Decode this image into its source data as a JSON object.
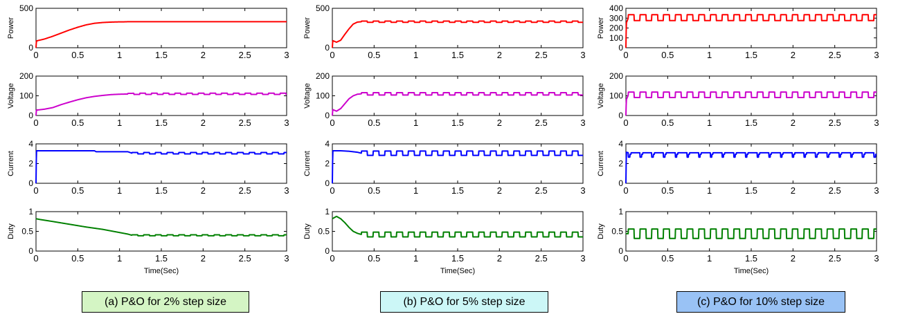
{
  "chart_data": [
    {
      "type": "line",
      "caption": "(a) P&O for 2% step size",
      "caption_color": "#d4f5c4",
      "xlabel": "Time(Sec)",
      "xlim": [
        0,
        3
      ],
      "xticks": [
        "0",
        "0.5",
        "1",
        "1.5",
        "2",
        "2.5",
        "3"
      ],
      "subplots": [
        {
          "ylabel": "Power",
          "ylim": [
            0,
            500
          ],
          "yticks": [
            "0",
            "500"
          ],
          "color": "#ff0000",
          "x": [
            0,
            0.005,
            0.02,
            0.1,
            0.2,
            0.3,
            0.4,
            0.5,
            0.6,
            0.7,
            0.8,
            0.9,
            1.0,
            1.05,
            1.1,
            1.5,
            2.0,
            2.5,
            3.0
          ],
          "y": [
            0,
            85,
            90,
            110,
            145,
            185,
            225,
            260,
            290,
            310,
            320,
            325,
            328,
            328,
            330,
            330,
            330,
            330,
            330
          ]
        },
        {
          "ylabel": "Voltage",
          "ylim": [
            0,
            200
          ],
          "yticks": [
            "0",
            "100",
            "200"
          ],
          "color": "#cc00cc",
          "x": [
            0,
            0.005,
            0.02,
            0.1,
            0.2,
            0.3,
            0.4,
            0.5,
            0.6,
            0.7,
            0.8,
            0.9,
            1.0,
            1.2,
            1.5,
            2.0,
            2.5,
            3.0
          ],
          "y": [
            0,
            28,
            28,
            32,
            40,
            55,
            68,
            80,
            90,
            97,
            102,
            106,
            108,
            110,
            110,
            110,
            110,
            110
          ],
          "ripple": {
            "from": 1.1,
            "amp": 3,
            "period": 0.14
          }
        },
        {
          "ylabel": "Current",
          "ylim": [
            0,
            4
          ],
          "yticks": [
            "0",
            "2",
            "4"
          ],
          "color": "#0000ff",
          "x": [
            0,
            0.005,
            0.7,
            0.72,
            1.1,
            1.15,
            3.0
          ],
          "y": [
            0,
            3.3,
            3.3,
            3.2,
            3.2,
            3.05,
            3.05
          ],
          "ripple": {
            "from": 1.15,
            "amp": 0.07,
            "period": 0.14
          }
        },
        {
          "ylabel": "Duty",
          "ylim": [
            0,
            1
          ],
          "yticks": [
            "0",
            "0.5",
            "1"
          ],
          "color": "#008000",
          "x": [
            0,
            0.05,
            0.2,
            0.4,
            0.6,
            0.8,
            1.0,
            1.1,
            1.15,
            1.5,
            2.0,
            2.5,
            3.0
          ],
          "y": [
            0.82,
            0.8,
            0.75,
            0.68,
            0.61,
            0.55,
            0.47,
            0.43,
            0.4,
            0.4,
            0.4,
            0.4,
            0.4
          ],
          "ripple": {
            "from": 1.15,
            "amp": 0.012,
            "period": 0.14
          }
        }
      ]
    },
    {
      "type": "line",
      "caption": "(b) P&O for 5% step size",
      "caption_color": "#ccf7f7",
      "xlabel": "Time(Sec)",
      "xlim": [
        0,
        3
      ],
      "xticks": [
        "0",
        "0.5",
        "1",
        "1.5",
        "2",
        "2.5",
        "3"
      ],
      "subplots": [
        {
          "ylabel": "Power",
          "ylim": [
            0,
            500
          ],
          "yticks": [
            "0",
            "500"
          ],
          "color": "#ff0000",
          "x": [
            0,
            0.005,
            0.05,
            0.1,
            0.15,
            0.2,
            0.25,
            0.3,
            0.35,
            1.0,
            2.0,
            3.0
          ],
          "y": [
            0,
            90,
            70,
            95,
            170,
            240,
            300,
            325,
            330,
            330,
            330,
            330
          ],
          "ripple": {
            "from": 0.35,
            "amp": 8,
            "period": 0.14
          }
        },
        {
          "ylabel": "Voltage",
          "ylim": [
            0,
            200
          ],
          "yticks": [
            "0",
            "100",
            "200"
          ],
          "color": "#cc00cc",
          "x": [
            0,
            0.005,
            0.05,
            0.1,
            0.15,
            0.2,
            0.25,
            0.3,
            0.35,
            1.0,
            2.0,
            3.0
          ],
          "y": [
            0,
            30,
            22,
            35,
            60,
            85,
            100,
            108,
            110,
            110,
            110,
            110
          ],
          "ripple": {
            "from": 0.35,
            "amp": 6,
            "period": 0.14
          }
        },
        {
          "ylabel": "Current",
          "ylim": [
            0,
            4
          ],
          "yticks": [
            "0",
            "2",
            "4"
          ],
          "color": "#0000ff",
          "x": [
            0,
            0.005,
            0.1,
            0.2,
            0.3,
            0.35,
            1.0,
            2.0,
            3.0
          ],
          "y": [
            0,
            3.3,
            3.3,
            3.25,
            3.15,
            3.05,
            3.05,
            3.05,
            3.05
          ],
          "ripple": {
            "from": 0.35,
            "amp": 0.22,
            "period": 0.14
          }
        },
        {
          "ylabel": "Duty",
          "ylim": [
            0,
            1
          ],
          "yticks": [
            "0",
            "0.5",
            "1"
          ],
          "color": "#008000",
          "x": [
            0,
            0.05,
            0.1,
            0.15,
            0.2,
            0.25,
            0.3,
            0.35,
            1.0,
            2.0,
            3.0
          ],
          "y": [
            0.82,
            0.88,
            0.82,
            0.72,
            0.6,
            0.5,
            0.45,
            0.42,
            0.42,
            0.42,
            0.42
          ],
          "ripple": {
            "from": 0.35,
            "amp": 0.06,
            "period": 0.14
          }
        }
      ]
    },
    {
      "type": "line",
      "caption": "(c) P&O for 10% step size",
      "caption_color": "#99c2f5",
      "xlabel": "Time(Sec)",
      "xlim": [
        0,
        3
      ],
      "xticks": [
        "0",
        "0.5",
        "1",
        "1.5",
        "2",
        "2.5",
        "3"
      ],
      "subplots": [
        {
          "ylabel": "Power",
          "ylim": [
            0,
            400
          ],
          "yticks": [
            "0",
            "100",
            "200",
            "300",
            "400"
          ],
          "color": "#ff0000",
          "x": [
            0,
            0.005,
            0.03,
            1.0,
            2.0,
            3.0
          ],
          "y": [
            0,
            250,
            305,
            305,
            305,
            305
          ],
          "ripple": {
            "from": 0.03,
            "amp": 30,
            "period": 0.14
          }
        },
        {
          "ylabel": "Voltage",
          "ylim": [
            0,
            200
          ],
          "yticks": [
            "0",
            "100",
            "200"
          ],
          "color": "#cc00cc",
          "x": [
            0,
            0.005,
            0.03,
            1.0,
            2.0,
            3.0
          ],
          "y": [
            0,
            80,
            105,
            105,
            105,
            105
          ],
          "ripple": {
            "from": 0.03,
            "amp": 14,
            "period": 0.14
          }
        },
        {
          "ylabel": "Current",
          "ylim": [
            0,
            4
          ],
          "yticks": [
            "0",
            "2",
            "4"
          ],
          "color": "#0000ff",
          "x": [
            0,
            0.005,
            0.03,
            1.0,
            2.0,
            3.0
          ],
          "y": [
            0,
            3.15,
            3.1,
            3.1,
            3.1,
            3.1
          ],
          "ripple": {
            "from": 0.03,
            "amp": 0.45,
            "period": 0.14,
            "style": "dip"
          }
        },
        {
          "ylabel": "Duty",
          "ylim": [
            0,
            1
          ],
          "yticks": [
            "0",
            "0.5",
            "1"
          ],
          "color": "#008000",
          "x": [
            0,
            0.03,
            1.0,
            2.0,
            3.0
          ],
          "y": [
            0.44,
            0.44,
            0.44,
            0.44,
            0.44
          ],
          "ripple": {
            "from": 0.03,
            "amp": 0.12,
            "period": 0.14
          }
        }
      ]
    }
  ]
}
